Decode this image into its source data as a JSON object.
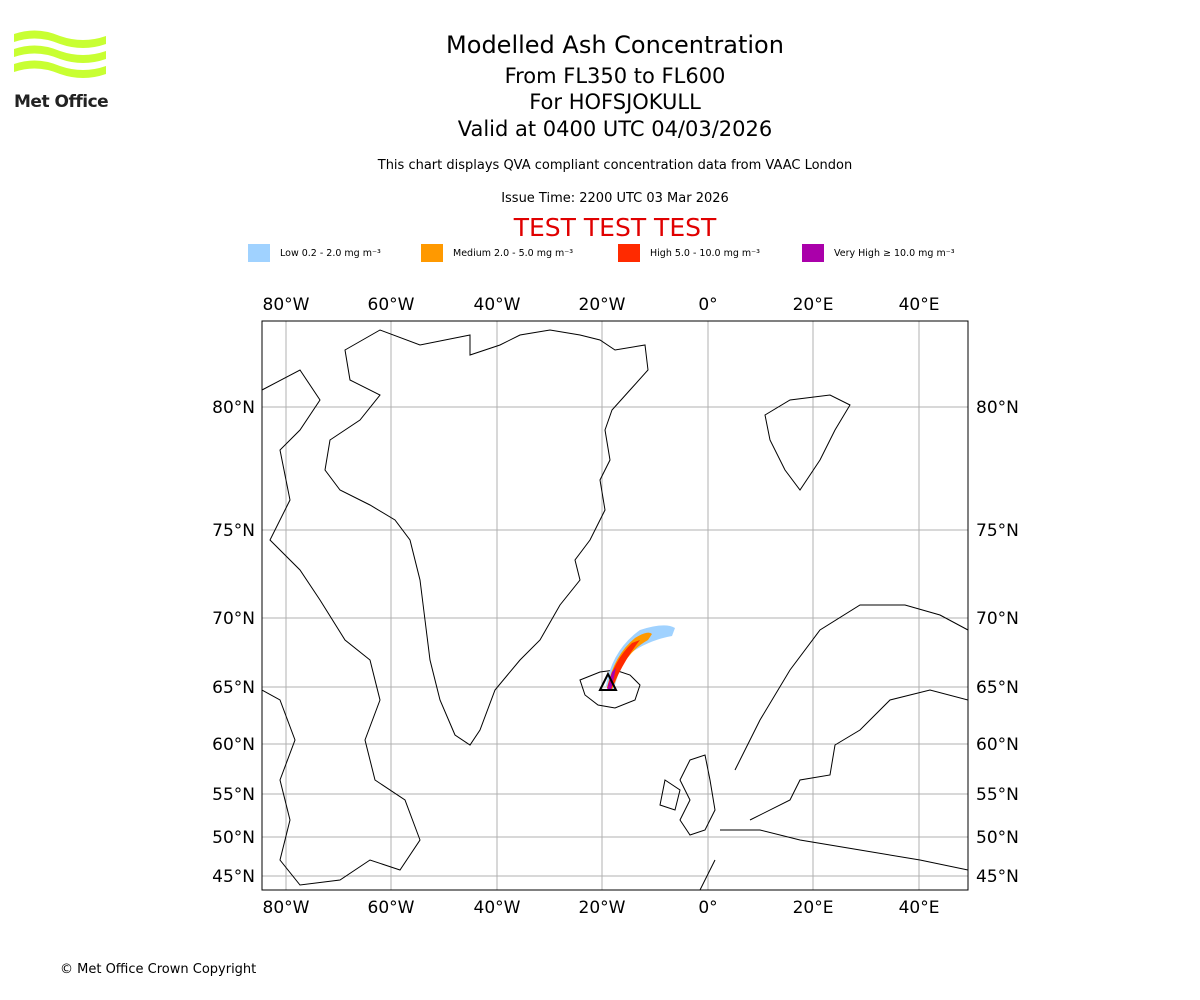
{
  "logo": {
    "text": "Met Office"
  },
  "header": {
    "title": "Modelled Ash Concentration",
    "levels": "From FL350 to FL600",
    "volcano": "For HOFSJOKULL",
    "valid": "Valid at 0400 UTC 04/03/2026",
    "compliance": "This chart displays QVA compliant concentration data from VAAC London",
    "issue": "Issue Time: 2200 UTC 03 Mar 2026",
    "test": "TEST TEST TEST"
  },
  "legend": [
    {
      "label": "Low 0.2 - 2.0 mg m⁻³",
      "color": "#a0d2ff"
    },
    {
      "label": "Medium 2.0 - 5.0 mg m⁻³",
      "color": "#ff9900"
    },
    {
      "label": "High 5.0 - 10.0 mg m⁻³",
      "color": "#ff2a00"
    },
    {
      "label": "Very High ≥ 10.0 mg m⁻³",
      "color": "#aa00aa"
    }
  ],
  "map": {
    "lon_labels": [
      "80°W",
      "60°W",
      "40°W",
      "20°W",
      "0°",
      "20°E",
      "40°E"
    ],
    "lat_labels": [
      "80°N",
      "75°N",
      "70°N",
      "65°N",
      "60°N",
      "55°N",
      "50°N",
      "45°N"
    ],
    "volcano_icon": "volcano-triangle-icon"
  },
  "footer": {
    "copyright": "© Met Office Crown Copyright"
  }
}
